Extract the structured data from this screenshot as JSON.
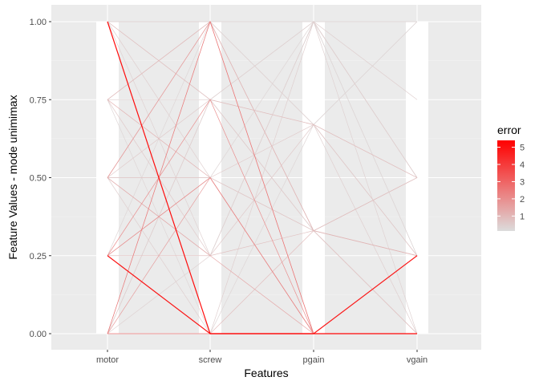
{
  "chart_data": {
    "type": "line",
    "subtype": "parallel-coordinates",
    "title": "",
    "xlabel": "Features",
    "ylabel": "Feature Values - mode unimimax",
    "categories": [
      "motor",
      "screw",
      "pgain",
      "vgain"
    ],
    "ylim": [
      0,
      1
    ],
    "y_ticks": [
      0,
      0.25,
      0.5,
      0.75,
      1
    ],
    "y_tick_labels": [
      "0.00",
      "0.25",
      "0.50",
      "0.75",
      "1.00"
    ],
    "grid": true,
    "legend": {
      "title": "error",
      "placement": "right",
      "type": "colorbar",
      "min": 0.13,
      "max": 5.4,
      "ticks": [
        1,
        2,
        3,
        4,
        5
      ],
      "tick_labels": [
        "1",
        "2",
        "3",
        "4",
        "5"
      ],
      "low_color": "#dcdcdc",
      "high_color": "#ff0000"
    },
    "series": [
      {
        "values": [
          1,
          0,
          0,
          0
        ],
        "error": 5.4
      },
      {
        "values": [
          0.25,
          0,
          0,
          0.25
        ],
        "error": 5.0
      },
      {
        "values": [
          0.25,
          0,
          0,
          0
        ],
        "error": 3.2
      },
      {
        "values": [
          0,
          0,
          0,
          0
        ],
        "error": 2.8
      },
      {
        "values": [
          0,
          1,
          0,
          0
        ],
        "error": 2.6
      },
      {
        "values": [
          0.25,
          0.5,
          0,
          0
        ],
        "error": 2.3
      },
      {
        "values": [
          0.25,
          0.75,
          0,
          0
        ],
        "error": 2.1
      },
      {
        "values": [
          0.5,
          1,
          0,
          0
        ],
        "error": 1.9
      },
      {
        "values": [
          0,
          0.5,
          0,
          0
        ],
        "error": 1.7
      },
      {
        "values": [
          0.5,
          0.25,
          0,
          0
        ],
        "error": 1.5
      },
      {
        "values": [
          0.75,
          1,
          0.33,
          0.25
        ],
        "error": 1.1
      },
      {
        "values": [
          1,
          0.75,
          0.67,
          0.5
        ],
        "error": 0.9
      },
      {
        "values": [
          0.5,
          0.5,
          0.33,
          0
        ],
        "error": 0.7
      },
      {
        "values": [
          0,
          0.75,
          1,
          0.75
        ],
        "error": 0.5
      },
      {
        "values": [
          0.75,
          0.25,
          0.67,
          0.25
        ],
        "error": 0.6
      },
      {
        "values": [
          1,
          1,
          1,
          1
        ],
        "error": 0.3
      },
      {
        "values": [
          0.5,
          1,
          0.67,
          0.5
        ],
        "error": 0.4
      },
      {
        "values": [
          0.25,
          0.25,
          0.33,
          0.25
        ],
        "error": 0.8
      },
      {
        "values": [
          1,
          0.5,
          0.33,
          0.5
        ],
        "error": 0.5
      },
      {
        "values": [
          0.75,
          0,
          0.67,
          1
        ],
        "error": 0.3
      },
      {
        "values": [
          0,
          0.25,
          1,
          0.5
        ],
        "error": 0.4
      },
      {
        "values": [
          0.5,
          0.75,
          0.33,
          0.25
        ],
        "error": 0.6
      },
      {
        "values": [
          1,
          0.25,
          1,
          0
        ],
        "error": 0.4
      },
      {
        "values": [
          0.75,
          0.5,
          0,
          0.25
        ],
        "error": 1.2
      },
      {
        "values": [
          0.25,
          1,
          0.67,
          1
        ],
        "error": 0.3
      },
      {
        "values": [
          0.5,
          0,
          1,
          0.5
        ],
        "error": 0.5
      },
      {
        "values": [
          0,
          1,
          0.33,
          0
        ],
        "error": 0.7
      },
      {
        "values": [
          1,
          0.75,
          1,
          0.25
        ],
        "error": 0.2
      },
      {
        "values": [
          0.75,
          1,
          1,
          0.5
        ],
        "error": 0.3
      },
      {
        "values": [
          0.25,
          0.5,
          0.67,
          0.25
        ],
        "error": 0.6
      },
      {
        "values": [
          0.5,
          0.25,
          1,
          1
        ],
        "error": 0.2
      },
      {
        "values": [
          0,
          0.75,
          0.67,
          0
        ],
        "error": 0.5
      },
      {
        "values": [
          1,
          1,
          0.33,
          0
        ],
        "error": 0.4
      },
      {
        "values": [
          0.75,
          0.75,
          0.33,
          0.5
        ],
        "error": 0.4
      },
      {
        "values": [
          0.25,
          0,
          0.33,
          0.5
        ],
        "error": 0.9
      },
      {
        "values": [
          0.5,
          0.5,
          1,
          0.25
        ],
        "error": 0.3
      }
    ]
  }
}
